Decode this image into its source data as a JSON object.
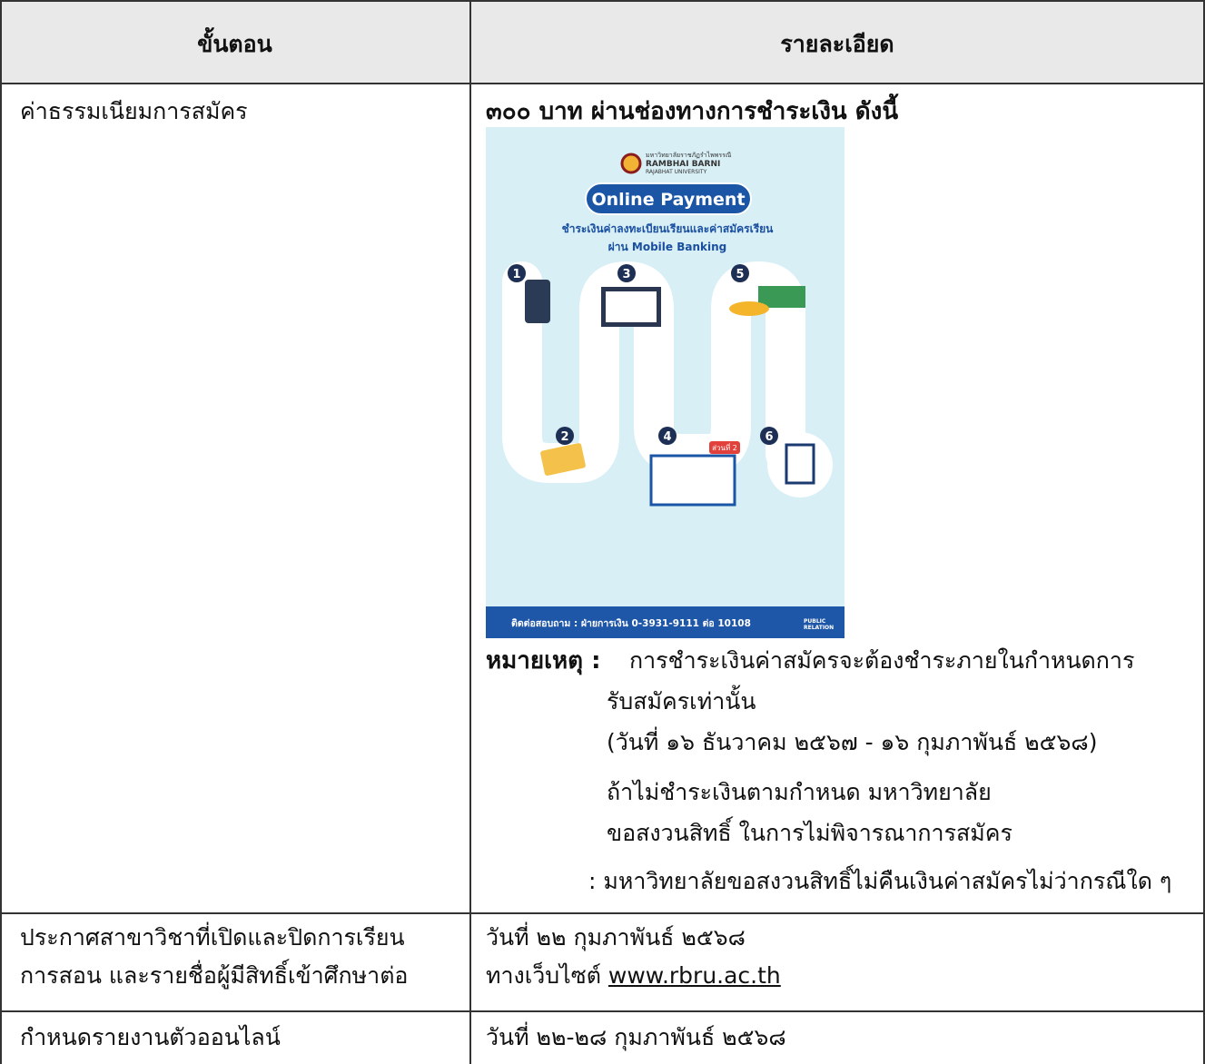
{
  "table": {
    "headers": [
      "ขั้นตอน",
      "รายละเอียด"
    ],
    "rows": [
      {
        "step": "ค่าธรรมเนียมการสมัคร",
        "detail": {
          "heading": "๓๐๐ บาท ผ่านช่องทางการชำระเงิน ดังนี้",
          "note_label": "หมายเหตุ :",
          "note_lines": [
            "การชำระเงินค่าสมัครจะต้องชำระภายในกำหนดการ",
            "รับสมัครเท่านั้น",
            "(วันที่ ๑๖ ธันวาคม ๒๕๖๗ - ๑๖ กุมภาพันธ์ ๒๕๖๘)",
            "ถ้าไม่ชำระเงินตามกำหนด มหาวิทยาลัย",
            "ขอสงวนสิทธิ์  ในการไม่พิจารณาการสมัคร",
            ": มหาวิทยาลัยขอสงวนสิทธิ์ไม่คืนเงินค่าสมัครไม่ว่ากรณีใด ๆ"
          ]
        }
      },
      {
        "step_lines": [
          "ประกาศสาขาวิชาที่เปิดและปิดการเรียน",
          "การสอน และรายชื่อผู้มีสิทธิ์เข้าศึกษาต่อ"
        ],
        "detail_date": "วันที่ ๒๒ กุมภาพันธ์ ๒๕๖๘",
        "detail_prefix": "ทางเว็บไซต์",
        "detail_link": "www.rbru.ac.th"
      },
      {
        "step": "กำหนดรายงานตัวออนไลน์",
        "detail": "วันที่ ๒๒-๒๘ กุมภาพันธ์ ๒๕๖๘"
      }
    ]
  },
  "poster": {
    "university_thai": "มหาวิทยาลัยราชภัฏรำไพพรรณี",
    "university_en": "RAMBHAI BARNI",
    "university_en_sub": "RAJABHAT UNIVERSITY",
    "title": "Online Payment",
    "subtitle": "ชำระเงินค่าลงทะเบียนเรียนและค่าสมัครเรียน",
    "subtitle2": "ผ่าน Mobile Banking",
    "steps": [
      "1",
      "2",
      "3",
      "4",
      "5",
      "6"
    ],
    "part_badge": "ส่วนที่ 2",
    "footer": "ติดต่อสอบถาม : ฝ่ายการเงิน 0-3931-9111 ต่อ 10108",
    "footer_badge": [
      "PUBLIC",
      "RELATION"
    ]
  }
}
